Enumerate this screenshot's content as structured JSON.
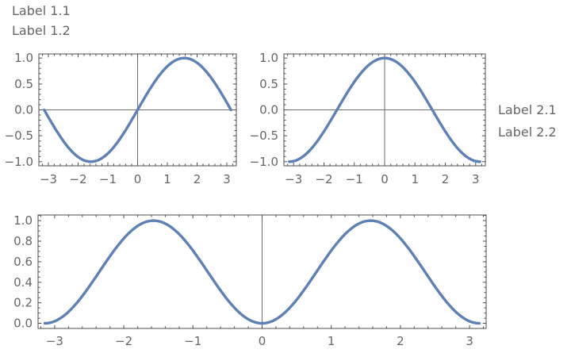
{
  "labels": {
    "plot1_line1": "Label 1.1",
    "plot1_line2": "Label 1.2",
    "plot2_line1": "Label 2.1",
    "plot2_line2": "Label 2.2"
  },
  "colors": {
    "curve": "#5e81b5",
    "frame": "#4f4f4f",
    "tick": "#4f4f4f",
    "tick_label": "#666666",
    "axis_line": "#6e6e6e",
    "background": "#ffffff"
  },
  "chart_data": [
    {
      "id": "plot-sin",
      "type": "line",
      "title": "",
      "xlabel": "",
      "ylabel": "",
      "series": [
        {
          "name": "sin(x)",
          "expression": "sin(x)",
          "domain": [
            -3.14159,
            3.14159
          ]
        }
      ],
      "xlim": [
        -3.32,
        3.32
      ],
      "ylim": [
        -1.08,
        1.08
      ],
      "xticks": {
        "values": [
          -3,
          -2,
          -1,
          0,
          1,
          2,
          3
        ],
        "labels": [
          "−3",
          "−2",
          "−1",
          "0",
          "1",
          "2",
          "3"
        ],
        "minor_step": 0.2
      },
      "yticks": {
        "values": [
          -1,
          -0.5,
          0,
          0.5,
          1
        ],
        "labels": [
          "−1.0",
          "−0.5",
          "0.0",
          "0.5",
          "1.0"
        ],
        "minor_step": 0.1
      },
      "frame": true,
      "grid": false,
      "legend": null,
      "show_x_axis_line": true,
      "show_y_axis_line": true,
      "key_points": {
        "zeros_x": [
          -3.14159,
          0,
          3.14159
        ],
        "max": [
          1.5708,
          1
        ],
        "min": [
          -1.5708,
          -1
        ]
      }
    },
    {
      "id": "plot-cos",
      "type": "line",
      "title": "",
      "xlabel": "",
      "ylabel": "",
      "series": [
        {
          "name": "cos(x)",
          "expression": "cos(x)",
          "domain": [
            -3.14159,
            3.14159
          ]
        }
      ],
      "xlim": [
        -3.32,
        3.32
      ],
      "ylim": [
        -1.08,
        1.08
      ],
      "xticks": {
        "values": [
          -3,
          -2,
          -1,
          0,
          1,
          2,
          3
        ],
        "labels": [
          "−3",
          "−2",
          "−1",
          "0",
          "1",
          "2",
          "3"
        ],
        "minor_step": 0.2
      },
      "yticks": {
        "values": [
          -1,
          -0.5,
          0,
          0.5,
          1
        ],
        "labels": [
          "−1.0",
          "−0.5",
          "0.0",
          "0.5",
          "1.0"
        ],
        "minor_step": 0.1
      },
      "frame": true,
      "grid": false,
      "legend": null,
      "show_x_axis_line": true,
      "show_y_axis_line": true,
      "key_points": {
        "zeros_x": [
          -1.5708,
          1.5708
        ],
        "max": [
          0,
          1
        ],
        "min_endpoints": [
          [
            -3.14159,
            -1
          ],
          [
            3.14159,
            -1
          ]
        ]
      }
    },
    {
      "id": "plot-sin-squared",
      "type": "line",
      "title": "",
      "xlabel": "",
      "ylabel": "",
      "series": [
        {
          "name": "sin(x)^2",
          "expression": "sin(x)^2",
          "domain": [
            -3.14159,
            3.14159
          ]
        }
      ],
      "xlim": [
        -3.24,
        3.24
      ],
      "ylim": [
        -0.05,
        1.055
      ],
      "xticks": {
        "values": [
          -3,
          -2,
          -1,
          0,
          1,
          2,
          3
        ],
        "labels": [
          "−3",
          "−2",
          "−1",
          "0",
          "1",
          "2",
          "3"
        ],
        "minor_step": 0.2
      },
      "yticks": {
        "values": [
          0,
          0.2,
          0.4,
          0.6,
          0.8,
          1
        ],
        "labels": [
          "0.0",
          "0.2",
          "0.4",
          "0.6",
          "0.8",
          "1.0"
        ],
        "minor_step": 0.05
      },
      "frame": true,
      "grid": false,
      "legend": null,
      "show_x_axis_line": false,
      "show_y_axis_line": true,
      "key_points": {
        "zeros_x": [
          -3.14159,
          0,
          3.14159
        ],
        "maxima": [
          [
            -1.5708,
            1
          ],
          [
            1.5708,
            1
          ]
        ]
      }
    }
  ]
}
